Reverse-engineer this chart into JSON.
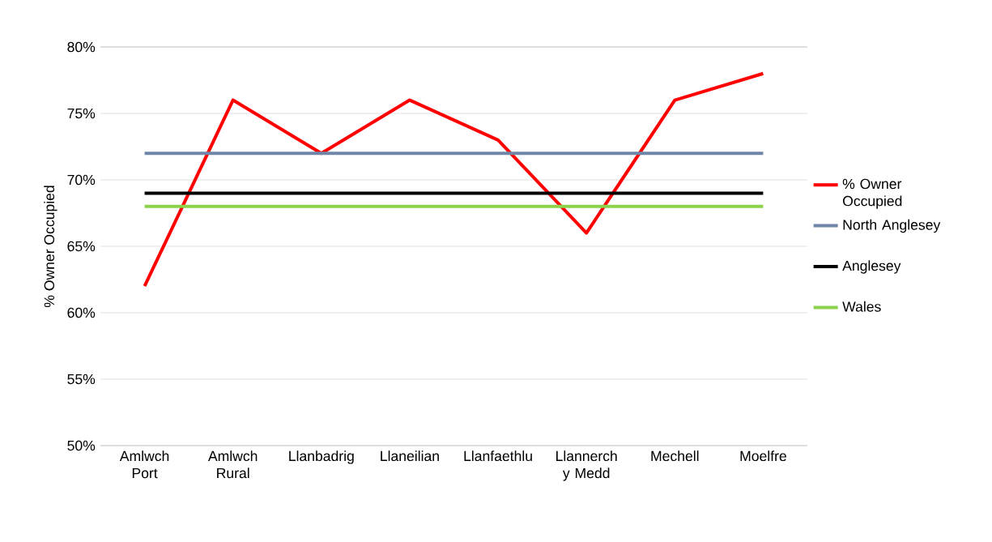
{
  "chart_data": {
    "type": "line",
    "ylabel": "% Owner Occupied",
    "categories": [
      "Amlwch Port",
      "Amlwch Rural",
      "Llanbadrig",
      "Llaneilian",
      "Llanfaethlu",
      "Llannerch y Medd",
      "Mechell",
      "Moelfre"
    ],
    "series": [
      {
        "name": "% Owner Occupied",
        "color": "#ff0000",
        "values": [
          62,
          76,
          72,
          76,
          73,
          66,
          76,
          78
        ]
      },
      {
        "name": "North Anglesey",
        "color": "#6f86a8",
        "values": [
          72,
          72,
          72,
          72,
          72,
          72,
          72,
          72
        ]
      },
      {
        "name": "Anglesey",
        "color": "#000000",
        "values": [
          69,
          69,
          69,
          69,
          69,
          69,
          69,
          69
        ]
      },
      {
        "name": "Wales",
        "color": "#8cd24c",
        "values": [
          68,
          68,
          68,
          68,
          68,
          68,
          68,
          68
        ]
      }
    ],
    "ylim": [
      50,
      80
    ],
    "yticks": [
      {
        "value": 50,
        "label": "50%"
      },
      {
        "value": 55,
        "label": "55%"
      },
      {
        "value": 60,
        "label": "60%"
      },
      {
        "value": 65,
        "label": "65%"
      },
      {
        "value": 70,
        "label": "70%"
      },
      {
        "value": 75,
        "label": "75%"
      },
      {
        "value": 80,
        "label": "80%"
      }
    ],
    "grid": "y",
    "legend": "right",
    "marker": "none",
    "line_style": "solid"
  }
}
